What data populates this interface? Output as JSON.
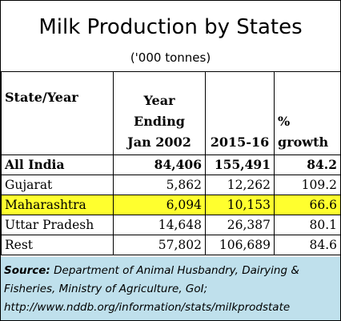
{
  "title": "Milk Production by States",
  "subtitle": "('000 tonnes)",
  "table": {
    "headers": {
      "state": "State/Year",
      "year_line1": "Year",
      "year_line2": "Ending",
      "year_line3": "Jan 2002",
      "col2015": "2015-16",
      "growth_line1": "%",
      "growth_line2": "growth"
    },
    "rows": [
      {
        "state": "All India",
        "y2002": "84,406",
        "y2016": "155,491",
        "growth": "84.2",
        "bold": true,
        "highlight": false
      },
      {
        "state": "Gujarat",
        "y2002": "5,862",
        "y2016": "12,262",
        "growth": "109.2",
        "bold": false,
        "highlight": false
      },
      {
        "state": "Maharashtra",
        "y2002": "6,094",
        "y2016": "10,153",
        "growth": "66.6",
        "bold": false,
        "highlight": true
      },
      {
        "state": "Uttar Pradesh",
        "y2002": "14,648",
        "y2016": "26,387",
        "growth": "80.1",
        "bold": false,
        "highlight": false
      },
      {
        "state": "Rest",
        "y2002": "57,802",
        "y2016": "106,689",
        "growth": "84.6",
        "bold": false,
        "highlight": false
      }
    ]
  },
  "source": {
    "label": "Source:",
    "text": " Department of Animal Husbandry, Dairying & Fisheries, Ministry of Agriculture, GoI; http://www.nddb.org/information/stats/milkprodstate"
  },
  "colors": {
    "highlight": "#ffff2e",
    "source_background": "#bfe0ec"
  }
}
